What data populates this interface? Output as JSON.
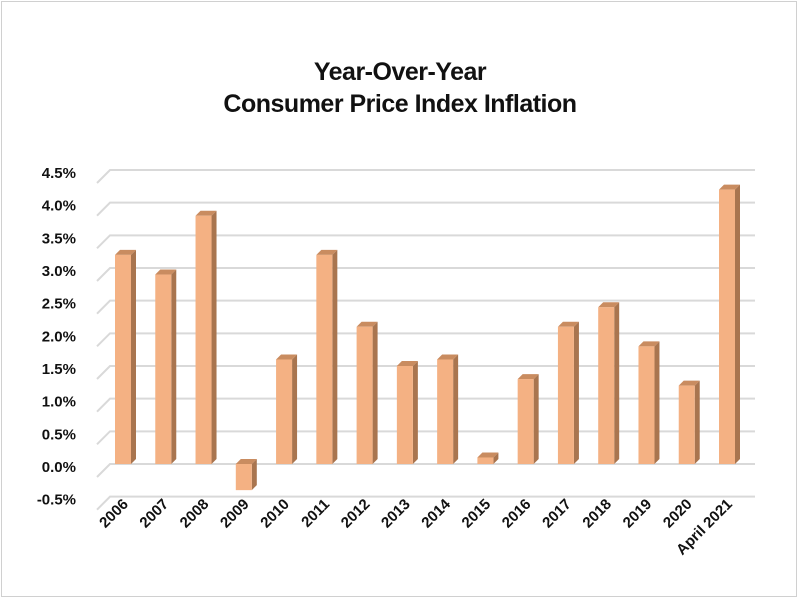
{
  "chart_data": {
    "type": "bar",
    "title_lines": [
      "Year-Over-Year",
      "Consumer Price Index Inflation"
    ],
    "xlabel": "",
    "ylabel": "",
    "categories": [
      "2006",
      "2007",
      "2008",
      "2009",
      "2010",
      "2011",
      "2012",
      "2013",
      "2014",
      "2015",
      "2016",
      "2017",
      "2018",
      "2019",
      "2020",
      "April 2021"
    ],
    "values": [
      3.2,
      2.9,
      3.8,
      -0.4,
      1.6,
      3.2,
      2.1,
      1.5,
      1.6,
      0.1,
      1.3,
      2.1,
      2.4,
      1.8,
      1.2,
      4.2
    ],
    "ylim": [
      -0.5,
      4.5
    ],
    "yticks": [
      -0.5,
      0.0,
      0.5,
      1.0,
      1.5,
      2.0,
      2.5,
      3.0,
      3.5,
      4.0,
      4.5
    ],
    "ytick_labels": [
      "-0.5%",
      "0.0%",
      "0.5%",
      "1.0%",
      "1.5%",
      "2.0%",
      "2.5%",
      "3.0%",
      "3.5%",
      "4.0%",
      "4.5%"
    ],
    "grid": true,
    "legend": "none",
    "style": "3d-column",
    "colors": {
      "bar_front": "#F4B183",
      "bar_side": "#A9754F",
      "bar_top": "#C98C60",
      "grid": "#D9D9D9"
    }
  }
}
